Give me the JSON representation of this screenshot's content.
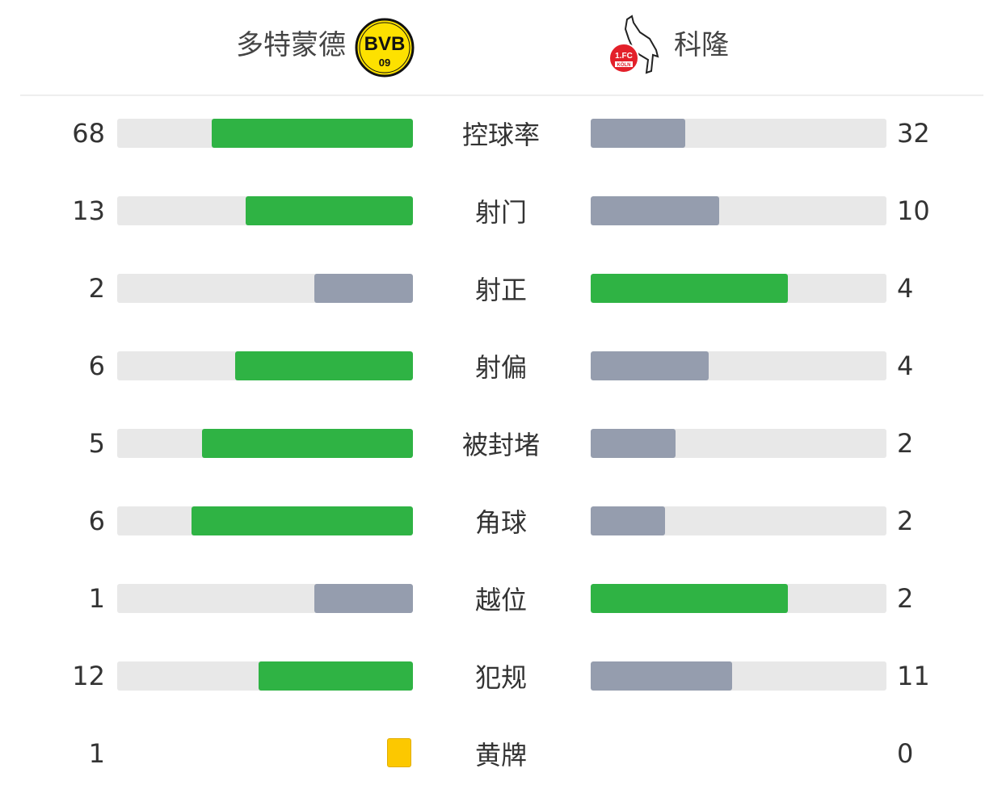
{
  "header": {
    "home_team": "多特蒙德",
    "away_team": "科隆",
    "home_logo_text": "BVB 09",
    "away_logo_text": "1.FC KÖLN"
  },
  "colors": {
    "leader": "#2fb344",
    "trailer": "#959dae",
    "track": "#e8e8e8",
    "yellow_card": "#fcc800"
  },
  "stats": [
    {
      "label": "控球率",
      "home": "68",
      "away": "32"
    },
    {
      "label": "射门",
      "home": "13",
      "away": "10"
    },
    {
      "label": "射正",
      "home": "2",
      "away": "4"
    },
    {
      "label": "射偏",
      "home": "6",
      "away": "4"
    },
    {
      "label": "被封堵",
      "home": "5",
      "away": "2"
    },
    {
      "label": "角球",
      "home": "6",
      "away": "2"
    },
    {
      "label": "越位",
      "home": "1",
      "away": "2"
    },
    {
      "label": "犯规",
      "home": "12",
      "away": "11"
    },
    {
      "label": "黄牌",
      "home": "1",
      "away": "0",
      "type": "card"
    }
  ]
}
